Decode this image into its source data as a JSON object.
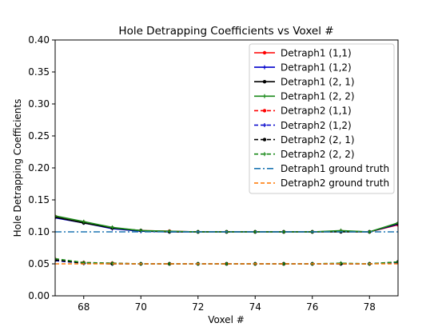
{
  "chart_data": {
    "type": "line",
    "title": "Hole Detrapping Coefficients vs Voxel #",
    "xlabel": "Voxel #",
    "ylabel": "Hole Detrapping Coefficients",
    "xlim": [
      67,
      79
    ],
    "ylim": [
      0.0,
      0.4
    ],
    "xticks": [
      68,
      70,
      72,
      74,
      76,
      78
    ],
    "xtick_labels": [
      "68",
      "70",
      "72",
      "74",
      "76",
      "78"
    ],
    "yticks": [
      0.0,
      0.05,
      0.1,
      0.15,
      0.2,
      0.25,
      0.3,
      0.35,
      0.4
    ],
    "ytick_labels": [
      "0.00",
      "0.05",
      "0.10",
      "0.15",
      "0.20",
      "0.25",
      "0.30",
      "0.35",
      "0.40"
    ],
    "grid": false,
    "legend_position": "top-right",
    "x": [
      67,
      68,
      69,
      70,
      71,
      72,
      73,
      74,
      75,
      76,
      77,
      78,
      79
    ],
    "series": [
      {
        "name": "Detraph1 (1,1)",
        "color": "#ff0000",
        "linestyle": "solid",
        "marker": "dot",
        "values": [
          0.124,
          0.115,
          0.106,
          0.102,
          0.101,
          0.1,
          0.1,
          0.1,
          0.1,
          0.1,
          0.101,
          0.1,
          0.111
        ]
      },
      {
        "name": "Detraph1 (1,2)",
        "color": "#0000cc",
        "linestyle": "solid",
        "marker": "plus",
        "values": [
          0.122,
          0.114,
          0.105,
          0.101,
          0.1,
          0.1,
          0.1,
          0.1,
          0.1,
          0.1,
          0.101,
          0.1,
          0.112
        ]
      },
      {
        "name": "Detraph1 (2, 1)",
        "color": "#000000",
        "linestyle": "solid",
        "marker": "dot",
        "values": [
          0.123,
          0.114,
          0.106,
          0.102,
          0.1,
          0.1,
          0.1,
          0.1,
          0.1,
          0.1,
          0.1,
          0.1,
          0.113
        ]
      },
      {
        "name": "Detraph1 (2, 2)",
        "color": "#1a8a1a",
        "linestyle": "solid",
        "marker": "plus",
        "values": [
          0.125,
          0.116,
          0.107,
          0.102,
          0.101,
          0.1,
          0.1,
          0.1,
          0.1,
          0.1,
          0.102,
          0.1,
          0.114
        ]
      },
      {
        "name": "Detraph2 (1,1)",
        "color": "#ff0000",
        "linestyle": "dashed",
        "marker": "dot",
        "values": [
          0.057,
          0.052,
          0.051,
          0.05,
          0.05,
          0.05,
          0.05,
          0.05,
          0.05,
          0.05,
          0.05,
          0.05,
          0.052
        ]
      },
      {
        "name": "Detraph2 (1,2)",
        "color": "#0000cc",
        "linestyle": "dashed",
        "marker": "plus",
        "values": [
          0.055,
          0.051,
          0.05,
          0.05,
          0.05,
          0.05,
          0.05,
          0.05,
          0.05,
          0.05,
          0.05,
          0.05,
          0.052
        ]
      },
      {
        "name": "Detraph2 (2, 1)",
        "color": "#000000",
        "linestyle": "dashed",
        "marker": "dot",
        "values": [
          0.056,
          0.051,
          0.05,
          0.05,
          0.05,
          0.05,
          0.05,
          0.05,
          0.05,
          0.05,
          0.05,
          0.05,
          0.053
        ]
      },
      {
        "name": "Detraph2 (2, 2)",
        "color": "#1a8a1a",
        "linestyle": "dashed",
        "marker": "plus",
        "values": [
          0.058,
          0.052,
          0.051,
          0.05,
          0.05,
          0.05,
          0.05,
          0.05,
          0.05,
          0.05,
          0.051,
          0.05,
          0.053
        ]
      },
      {
        "name": "Detraph1 ground truth",
        "color": "#1f77b4",
        "linestyle": "dashdot",
        "marker": "none",
        "values": [
          0.1,
          0.1,
          0.1,
          0.1,
          0.1,
          0.1,
          0.1,
          0.1,
          0.1,
          0.1,
          0.1,
          0.1,
          0.1
        ]
      },
      {
        "name": "Detraph2 ground truth",
        "color": "#ff7f0e",
        "linestyle": "dashed",
        "marker": "none",
        "values": [
          0.05,
          0.05,
          0.05,
          0.05,
          0.05,
          0.05,
          0.05,
          0.05,
          0.05,
          0.05,
          0.05,
          0.05,
          0.05
        ]
      }
    ]
  }
}
